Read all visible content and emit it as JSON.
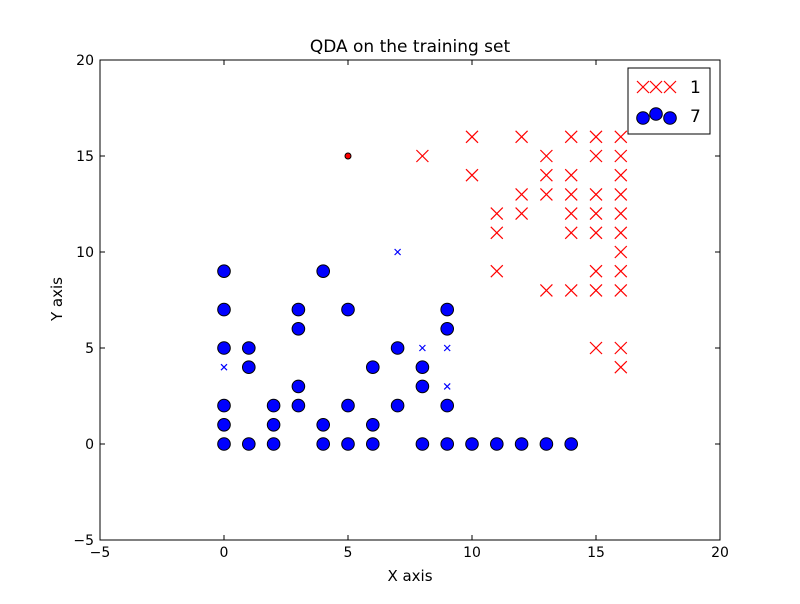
{
  "chart_data": {
    "type": "scatter",
    "title": "QDA on the training set",
    "xlabel": "X axis",
    "ylabel": "Y axis",
    "xlim": [
      -5,
      20
    ],
    "ylim": [
      -5,
      20
    ],
    "xticks": [
      -5,
      0,
      5,
      10,
      15,
      20
    ],
    "yticks": [
      -5,
      0,
      5,
      10,
      15,
      20
    ],
    "xtick_labels": [
      "−5",
      "0",
      "5",
      "10",
      "15",
      "20"
    ],
    "ytick_labels": [
      "−5",
      "0",
      "5",
      "10",
      "15",
      "20"
    ],
    "grid": false,
    "legend": {
      "placement": "top-right",
      "entries": [
        "1",
        "7"
      ]
    },
    "series": [
      {
        "name": "1",
        "marker": "x",
        "color": "#ff0000",
        "points": [
          [
            8,
            15
          ],
          [
            10,
            16
          ],
          [
            10,
            14
          ],
          [
            11,
            12
          ],
          [
            11,
            11
          ],
          [
            11,
            9
          ],
          [
            12,
            16
          ],
          [
            12,
            13
          ],
          [
            12,
            12
          ],
          [
            13,
            15
          ],
          [
            13,
            14
          ],
          [
            13,
            13
          ],
          [
            13,
            8
          ],
          [
            14,
            16
          ],
          [
            14,
            14
          ],
          [
            14,
            13
          ],
          [
            14,
            12
          ],
          [
            14,
            11
          ],
          [
            14,
            8
          ],
          [
            15,
            16
          ],
          [
            15,
            15
          ],
          [
            15,
            13
          ],
          [
            15,
            12
          ],
          [
            15,
            11
          ],
          [
            15,
            9
          ],
          [
            15,
            8
          ],
          [
            15,
            5
          ],
          [
            16,
            16
          ],
          [
            16,
            15
          ],
          [
            16,
            14
          ],
          [
            16,
            13
          ],
          [
            16,
            12
          ],
          [
            16,
            11
          ],
          [
            16,
            10
          ],
          [
            16,
            9
          ],
          [
            16,
            8
          ],
          [
            16,
            5
          ],
          [
            16,
            4
          ]
        ]
      },
      {
        "name": "7",
        "marker": "o",
        "color": "#0000ff",
        "points": [
          [
            0,
            9
          ],
          [
            0,
            7
          ],
          [
            0,
            5
          ],
          [
            0,
            2
          ],
          [
            0,
            1
          ],
          [
            0,
            0
          ],
          [
            1,
            5
          ],
          [
            1,
            4
          ],
          [
            1,
            0
          ],
          [
            2,
            2
          ],
          [
            2,
            1
          ],
          [
            2,
            0
          ],
          [
            3,
            7
          ],
          [
            3,
            6
          ],
          [
            3,
            3
          ],
          [
            3,
            2
          ],
          [
            4,
            9
          ],
          [
            4,
            1
          ],
          [
            4,
            0
          ],
          [
            5,
            7
          ],
          [
            5,
            2
          ],
          [
            5,
            0
          ],
          [
            6,
            4
          ],
          [
            6,
            1
          ],
          [
            6,
            0
          ],
          [
            7,
            5
          ],
          [
            7,
            2
          ],
          [
            8,
            4
          ],
          [
            8,
            3
          ],
          [
            8,
            0
          ],
          [
            9,
            7
          ],
          [
            9,
            6
          ],
          [
            9,
            2
          ],
          [
            9,
            0
          ],
          [
            10,
            0
          ],
          [
            11,
            0
          ],
          [
            12,
            0
          ],
          [
            13,
            0
          ],
          [
            14,
            0
          ]
        ]
      }
    ],
    "extra_points": [
      {
        "marker": "x-small",
        "color": "#0000ff",
        "points": [
          [
            0,
            4
          ],
          [
            7,
            10
          ],
          [
            8,
            5
          ],
          [
            9,
            5
          ],
          [
            9,
            3
          ]
        ]
      },
      {
        "marker": "o-small",
        "color": "#ff0000",
        "points": [
          [
            5,
            15
          ]
        ]
      }
    ]
  }
}
